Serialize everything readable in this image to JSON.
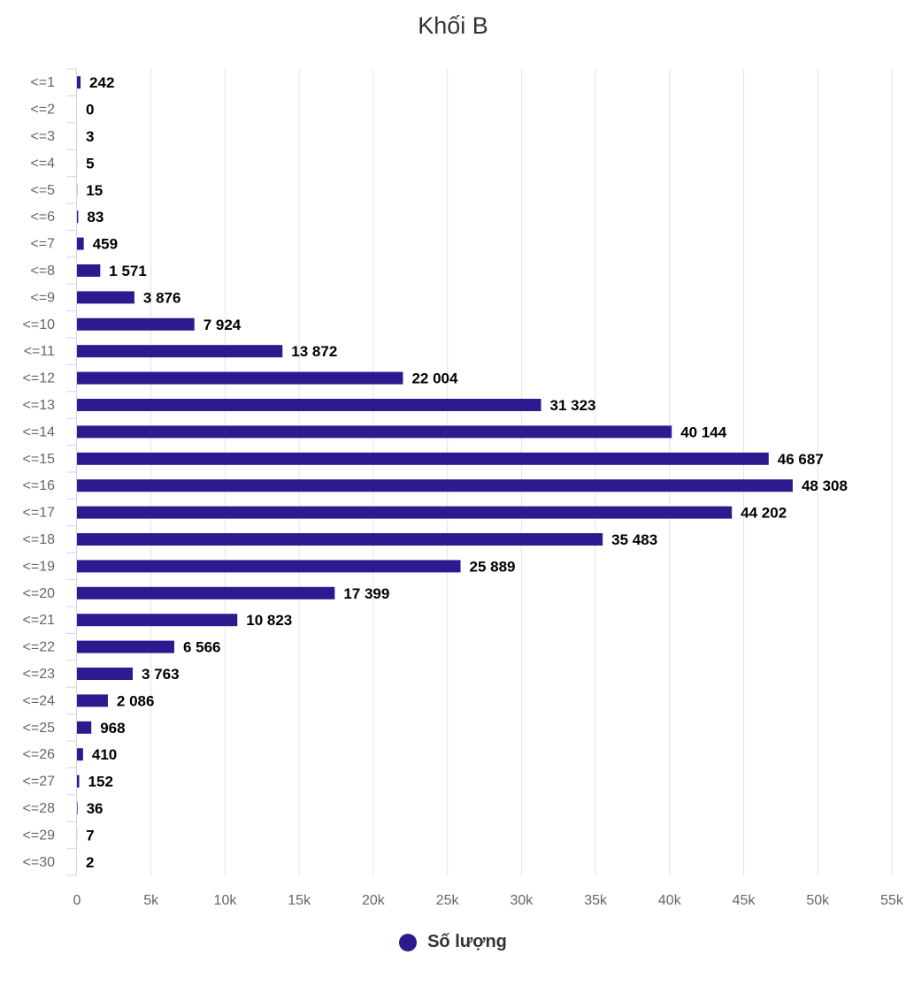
{
  "chart_data": {
    "type": "bar",
    "orientation": "horizontal",
    "title": "Khối B",
    "categories": [
      "<=1",
      "<=2",
      "<=3",
      "<=4",
      "<=5",
      "<=6",
      "<=7",
      "<=8",
      "<=9",
      "<=10",
      "<=11",
      "<=12",
      "<=13",
      "<=14",
      "<=15",
      "<=16",
      "<=17",
      "<=18",
      "<=19",
      "<=20",
      "<=21",
      "<=22",
      "<=23",
      "<=24",
      "<=25",
      "<=26",
      "<=27",
      "<=28",
      "<=29",
      "<=30"
    ],
    "series": [
      {
        "name": "Số lượng",
        "color": "#2e1a8e",
        "values": [
          242,
          0,
          3,
          5,
          15,
          83,
          459,
          1571,
          3876,
          7924,
          13872,
          22004,
          31323,
          40144,
          46687,
          48308,
          44202,
          35483,
          25889,
          17399,
          10823,
          6566,
          3763,
          2086,
          968,
          410,
          152,
          36,
          7,
          2
        ],
        "labels": [
          "242",
          "0",
          "3",
          "5",
          "15",
          "83",
          "459",
          "1 571",
          "3 876",
          "7 924",
          "13 872",
          "22 004",
          "31 323",
          "40 144",
          "46 687",
          "48 308",
          "44 202",
          "35 483",
          "25 889",
          "17 399",
          "10 823",
          "6 566",
          "3 763",
          "2 086",
          "968",
          "410",
          "152",
          "36",
          "7",
          "2"
        ]
      }
    ],
    "xlim": [
      0,
      55000
    ],
    "xticks": [
      0,
      5000,
      10000,
      15000,
      20000,
      25000,
      30000,
      35000,
      40000,
      45000,
      50000,
      55000
    ],
    "xtick_labels": [
      "0",
      "5k",
      "10k",
      "15k",
      "20k",
      "25k",
      "30k",
      "35k",
      "40k",
      "45k",
      "50k",
      "55k"
    ],
    "grid": true,
    "legend_position": "bottom"
  }
}
